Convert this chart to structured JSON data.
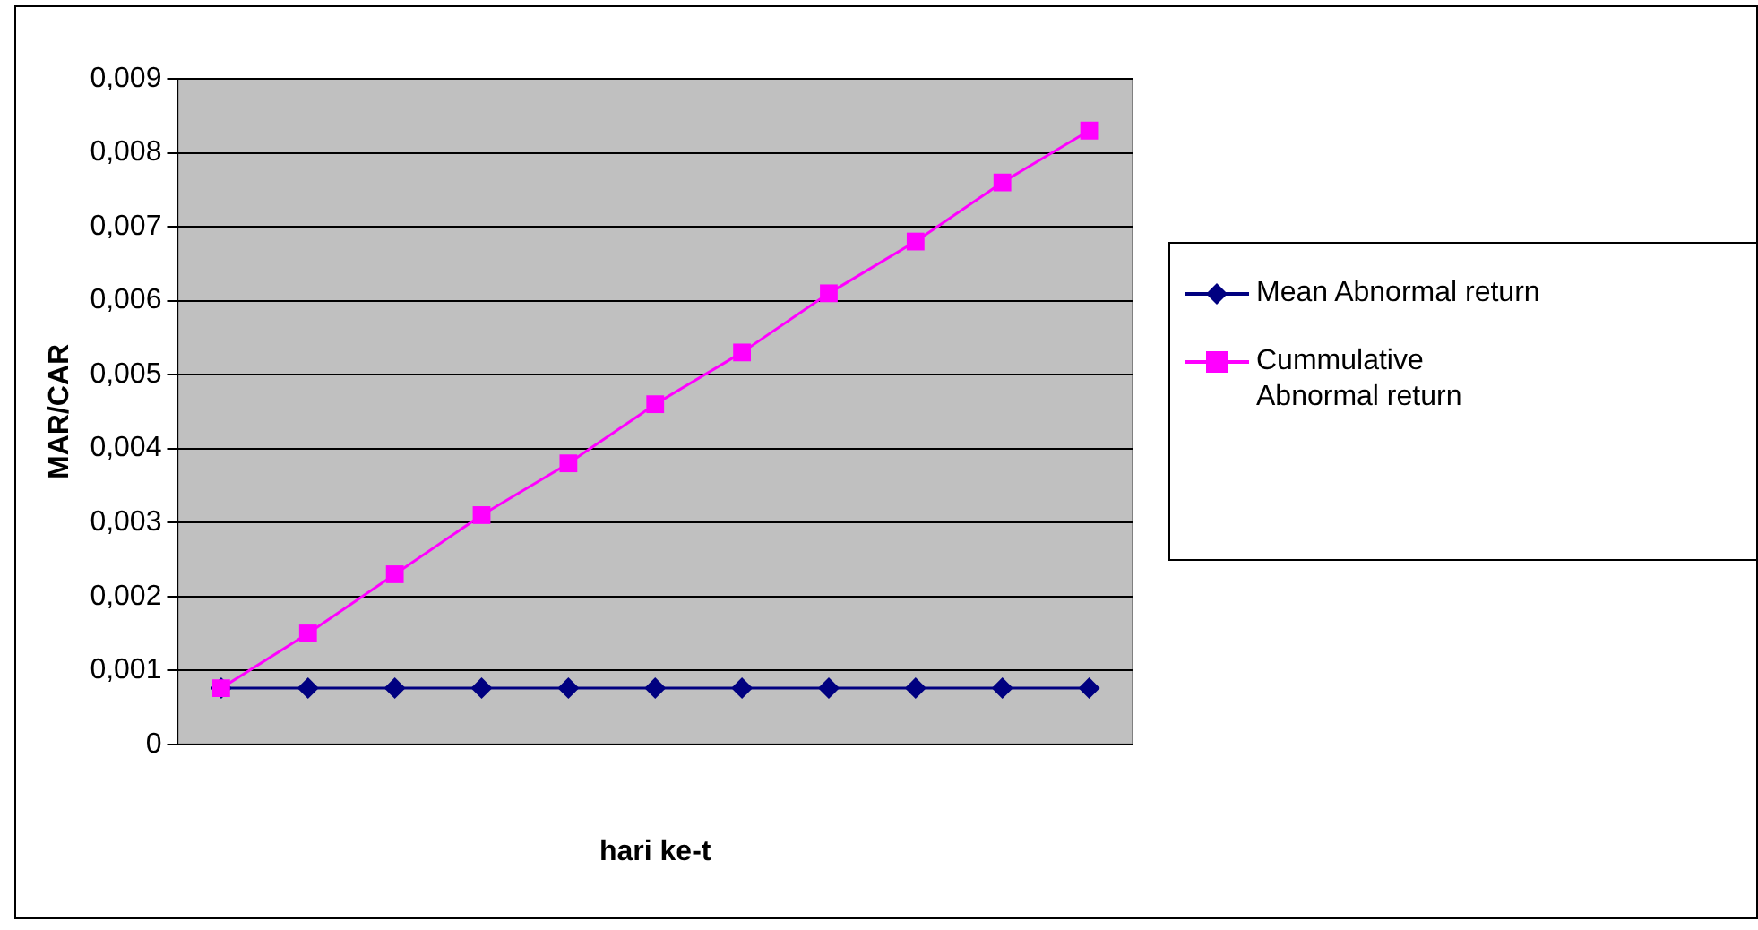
{
  "chart_data": {
    "type": "line",
    "xlabel": "hari ke-t",
    "ylabel": "MAR/CAR",
    "categories": [
      null,
      null,
      null,
      null,
      null,
      null,
      null,
      null,
      null,
      null,
      null
    ],
    "series": [
      {
        "name": "Mean Abnormal return",
        "color": "#000080",
        "marker": "diamond",
        "values": [
          0.00076,
          0.00076,
          0.00076,
          0.00076,
          0.00076,
          0.00076,
          0.00076,
          0.00076,
          0.00076,
          0.00076,
          0.00076
        ]
      },
      {
        "name": "Cummulative Abnormal return",
        "color": "#ff00ff",
        "marker": "square",
        "values": [
          0.00076,
          0.0015,
          0.0023,
          0.0031,
          0.0038,
          0.0046,
          0.0053,
          0.0061,
          0.0068,
          0.0076,
          0.0083
        ]
      }
    ],
    "ylim": [
      0,
      0.009
    ],
    "yticks": [
      0,
      {
        "value": 0.001,
        "label": "0,001"
      },
      {
        "value": 0.002,
        "label": "0,002"
      },
      {
        "value": 0.003,
        "label": "0,003"
      },
      {
        "value": 0.004,
        "label": "0,004"
      },
      {
        "value": 0.005,
        "label": "0,005"
      },
      {
        "value": 0.006,
        "label": "0,006"
      },
      {
        "value": 0.007,
        "label": "0,007"
      },
      {
        "value": 0.008,
        "label": "0,008"
      },
      {
        "value": 0.009,
        "label": "0,009"
      }
    ],
    "grid": "y",
    "legend": "right",
    "line_style": "solid"
  }
}
